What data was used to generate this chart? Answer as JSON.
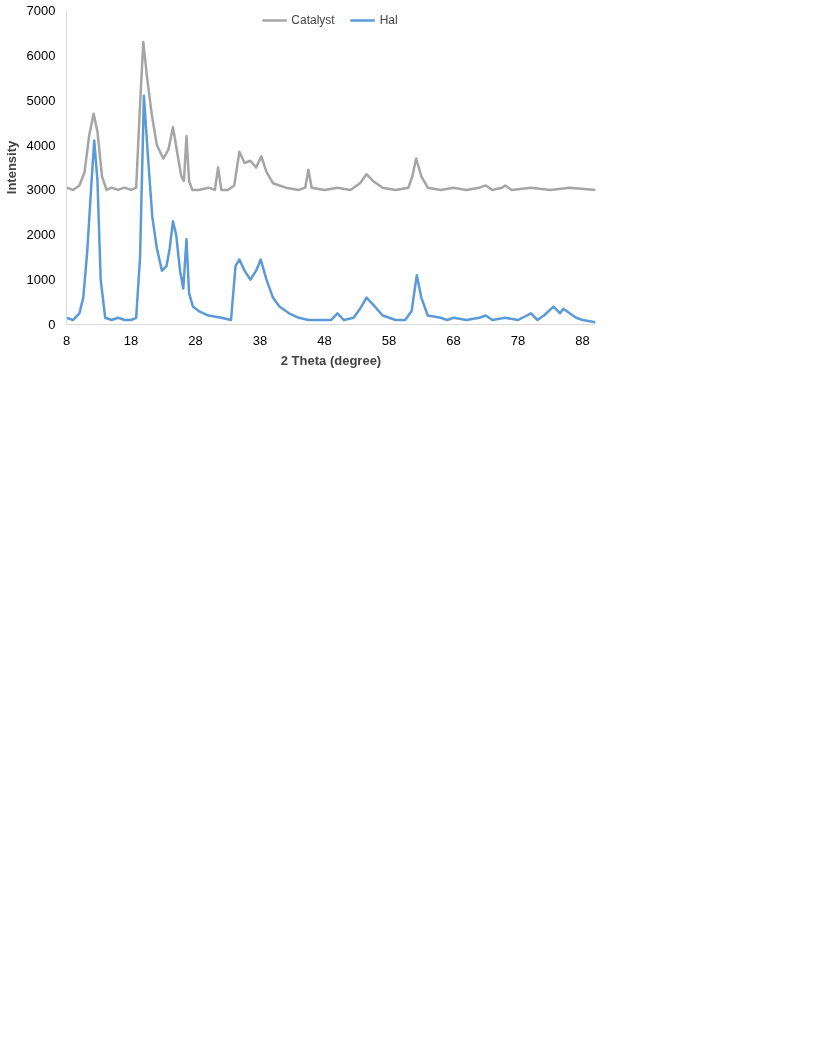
{
  "chart_data": {
    "type": "line",
    "xlabel": "2 Theta (degree)",
    "ylabel": "Intensity",
    "xlim": [
      8,
      90
    ],
    "xticks": [
      8,
      18,
      28,
      38,
      48,
      58,
      68,
      78,
      88
    ],
    "ylim": [
      0,
      7000
    ],
    "yticks": [
      0,
      1000,
      2000,
      3000,
      4000,
      5000,
      6000,
      7000
    ],
    "grid": false,
    "legend": "top",
    "marker": "none",
    "line_style": "solid",
    "series": [
      {
        "name": "Catalyst",
        "color": "#a5a5a5",
        "x": [
          8,
          9,
          10,
          10.8,
          11.5,
          12.2,
          12.8,
          13.5,
          14.2,
          15,
          16,
          17,
          18,
          18.8,
          19.3,
          19.9,
          20.5,
          21.2,
          22,
          23,
          23.8,
          24.5,
          25.2,
          25.8,
          26.2,
          26.6,
          27,
          27.5,
          28.5,
          30,
          31,
          31.5,
          32,
          33,
          34,
          34.8,
          35.6,
          36.5,
          37.4,
          38.2,
          39,
          40,
          42,
          44,
          45,
          45.5,
          46,
          48,
          50,
          52,
          53.5,
          54.5,
          55.5,
          57,
          59,
          61,
          61.6,
          62.2,
          63,
          64,
          66,
          68,
          70,
          72,
          73,
          74,
          75.5,
          76,
          77,
          80,
          83,
          86,
          90
        ],
        "values": [
          3050,
          3000,
          3100,
          3400,
          4200,
          4700,
          4300,
          3300,
          3000,
          3050,
          3000,
          3050,
          3000,
          3050,
          4600,
          6300,
          5500,
          4700,
          4000,
          3700,
          3900,
          4400,
          3800,
          3300,
          3200,
          4200,
          3200,
          3000,
          3000,
          3050,
          3000,
          3500,
          3000,
          3000,
          3100,
          3850,
          3600,
          3650,
          3500,
          3750,
          3400,
          3150,
          3050,
          3000,
          3050,
          3450,
          3050,
          3000,
          3050,
          3000,
          3150,
          3350,
          3200,
          3050,
          3000,
          3050,
          3300,
          3700,
          3300,
          3050,
          3000,
          3050,
          3000,
          3050,
          3100,
          3000,
          3050,
          3100,
          3000,
          3050,
          3000,
          3050,
          3000
        ]
      },
      {
        "name": "Hal",
        "color": "#5b9bd5",
        "x": [
          8,
          9,
          10,
          10.6,
          11.2,
          11.8,
          12.3,
          12.8,
          13.3,
          14,
          15,
          16,
          17,
          18,
          18.8,
          19.4,
          20,
          20.6,
          21.3,
          22,
          22.8,
          23.5,
          24,
          24.5,
          25,
          25.6,
          26.1,
          26.6,
          27,
          27.6,
          28.5,
          30,
          32,
          33.5,
          34.2,
          34.8,
          35.6,
          36.5,
          37.4,
          38.1,
          39,
          40,
          41,
          42.5,
          44,
          45.5,
          47,
          49,
          50,
          51,
          52.5,
          53.5,
          54.5,
          55.5,
          57,
          59,
          60.5,
          61.5,
          62.3,
          63,
          64,
          66,
          67,
          68,
          70,
          72,
          73,
          74,
          76,
          78,
          80,
          81,
          82,
          83.5,
          84.5,
          85,
          86,
          87,
          88,
          90
        ],
        "values": [
          150,
          100,
          250,
          600,
          1600,
          3000,
          4100,
          3200,
          1000,
          150,
          100,
          150,
          100,
          100,
          150,
          1500,
          5100,
          3800,
          2400,
          1700,
          1200,
          1300,
          1700,
          2300,
          2000,
          1200,
          800,
          1900,
          700,
          400,
          300,
          200,
          150,
          100,
          1300,
          1450,
          1200,
          1000,
          1200,
          1450,
          1000,
          600,
          400,
          250,
          150,
          100,
          100,
          100,
          250,
          100,
          150,
          350,
          600,
          450,
          200,
          100,
          100,
          300,
          1100,
          600,
          200,
          150,
          100,
          150,
          100,
          150,
          200,
          100,
          150,
          100,
          250,
          100,
          200,
          400,
          250,
          350,
          250,
          150,
          100,
          50
        ]
      }
    ]
  }
}
